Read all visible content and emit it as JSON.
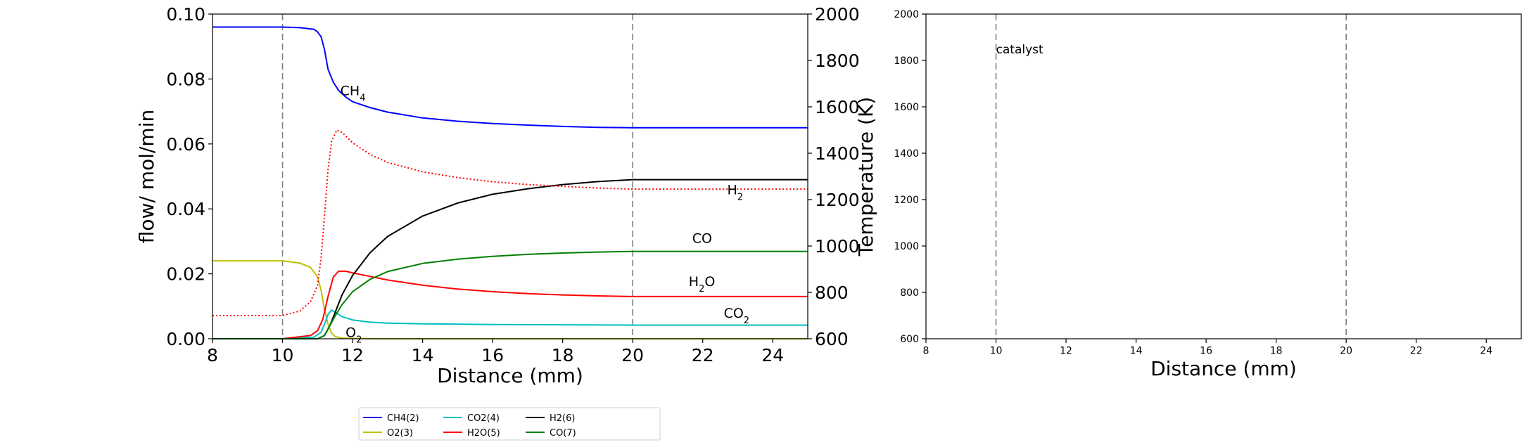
{
  "chart_data": [
    {
      "type": "line",
      "xlabel": "Distance (mm)",
      "ylabel": "flow/ mol/min",
      "y2label": "Temperature (K)",
      "xlim": [
        8,
        25
      ],
      "ylim": [
        0,
        0.1
      ],
      "y2lim": [
        600,
        2000
      ],
      "xticks": [
        "8",
        "10",
        "12",
        "14",
        "16",
        "18",
        "20",
        "22",
        "24"
      ],
      "yticks": [
        "0.00",
        "0.02",
        "0.04",
        "0.06",
        "0.08",
        "0.10"
      ],
      "y2ticks": [
        "600",
        "800",
        "1000",
        "1200",
        "1400",
        "1600",
        "1800",
        "2000"
      ],
      "vlines": [
        10,
        20
      ],
      "series": [
        {
          "name": "CH4(2)",
          "color": "#0000ff",
          "x": [
            8,
            10,
            10.5,
            10.9,
            11.0,
            11.1,
            11.2,
            11.3,
            11.45,
            11.6,
            11.8,
            12,
            12.5,
            13,
            14,
            15,
            16,
            17,
            18,
            19,
            20,
            21,
            22,
            23,
            24,
            25
          ],
          "y": [
            0.096,
            0.096,
            0.0958,
            0.0953,
            0.0945,
            0.093,
            0.089,
            0.083,
            0.079,
            0.0765,
            0.0745,
            0.073,
            0.0712,
            0.0698,
            0.068,
            0.067,
            0.0663,
            0.0658,
            0.0654,
            0.0651,
            0.065,
            0.065,
            0.065,
            0.065,
            0.065,
            0.065
          ]
        },
        {
          "name": "O2(3)",
          "color": "#bfbf00",
          "x": [
            8,
            10,
            10.5,
            10.8,
            11.0,
            11.1,
            11.2,
            11.3,
            11.4,
            11.5,
            11.7,
            12,
            13,
            25
          ],
          "y": [
            0.024,
            0.024,
            0.0233,
            0.022,
            0.019,
            0.015,
            0.009,
            0.0045,
            0.0018,
            0.0007,
            0.0002,
            0.0001,
            0.0,
            0.0
          ]
        },
        {
          "name": "CO2(4)",
          "color": "#00bfbf",
          "x": [
            8,
            10,
            10.9,
            11.1,
            11.2,
            11.3,
            11.4,
            11.5,
            11.7,
            12,
            12.5,
            13,
            14,
            16,
            18,
            20,
            25
          ],
          "y": [
            0.0,
            0.0,
            0.0005,
            0.002,
            0.0045,
            0.0075,
            0.0088,
            0.0082,
            0.0068,
            0.0058,
            0.0051,
            0.0048,
            0.0046,
            0.0044,
            0.0043,
            0.0042,
            0.0042
          ]
        },
        {
          "name": "H2O(5)",
          "color": "#ff0000",
          "x": [
            8,
            10,
            10.8,
            11.0,
            11.15,
            11.3,
            11.45,
            11.6,
            11.8,
            12,
            12.5,
            13,
            14,
            15,
            16,
            17,
            18,
            19,
            20,
            21,
            22,
            23,
            24,
            25
          ],
          "y": [
            0.0,
            0.0,
            0.001,
            0.0025,
            0.006,
            0.013,
            0.019,
            0.0208,
            0.0208,
            0.0203,
            0.0192,
            0.0181,
            0.0165,
            0.0153,
            0.0145,
            0.0139,
            0.0135,
            0.0132,
            0.013,
            0.013,
            0.013,
            0.013,
            0.013,
            0.013
          ]
        },
        {
          "name": "H2(6)",
          "color": "#000000",
          "x": [
            8,
            10,
            11,
            11.2,
            11.35,
            11.5,
            11.7,
            12,
            12.5,
            13,
            14,
            15,
            16,
            17,
            18,
            19,
            20,
            21,
            22,
            23,
            24,
            25
          ],
          "y": [
            0.0,
            0.0,
            0.0,
            0.001,
            0.004,
            0.008,
            0.0135,
            0.0195,
            0.0265,
            0.0315,
            0.0378,
            0.0418,
            0.0445,
            0.0462,
            0.0475,
            0.0484,
            0.049,
            0.049,
            0.049,
            0.049,
            0.049,
            0.049
          ]
        },
        {
          "name": "CO(7)",
          "color": "#008000",
          "x": [
            8,
            10,
            11,
            11.2,
            11.35,
            11.5,
            11.7,
            12,
            12.5,
            13,
            14,
            15,
            16,
            17,
            18,
            19,
            20,
            21,
            22,
            23,
            24,
            25
          ],
          "y": [
            0.0,
            0.0,
            0.0,
            0.001,
            0.004,
            0.007,
            0.0105,
            0.0145,
            0.0183,
            0.0207,
            0.0232,
            0.0245,
            0.0254,
            0.026,
            0.0264,
            0.0267,
            0.0269,
            0.0269,
            0.0269,
            0.0269,
            0.0269,
            0.0269
          ]
        },
        {
          "name": "Temperature",
          "color": "#ff0000",
          "dashed": true,
          "axis": "y2",
          "x": [
            8,
            10,
            10.5,
            10.8,
            11.0,
            11.1,
            11.2,
            11.3,
            11.4,
            11.55,
            11.7,
            12,
            12.5,
            13,
            14,
            15,
            16,
            17,
            18,
            19,
            20,
            21,
            22,
            23,
            24,
            25
          ],
          "y": [
            700,
            700,
            720,
            760,
            830,
            950,
            1130,
            1330,
            1450,
            1500,
            1490,
            1445,
            1395,
            1360,
            1320,
            1295,
            1277,
            1265,
            1257,
            1250,
            1245,
            1245,
            1245,
            1245,
            1245,
            1245
          ]
        }
      ],
      "annotations": [
        {
          "x": 11.65,
          "y": 0.075,
          "color": "#0000ff",
          "base": "CH",
          "sub": "4",
          "tail": ""
        },
        {
          "x": 22.7,
          "y": 0.0445,
          "color": "#000000",
          "base": "H",
          "sub": "2",
          "tail": ""
        },
        {
          "x": 21.7,
          "y": 0.0295,
          "color": "#008000",
          "base": "CO",
          "sub": "",
          "tail": ""
        },
        {
          "x": 21.6,
          "y": 0.0162,
          "color": "#ff0000",
          "base": "H",
          "sub": "2",
          "tail": "O"
        },
        {
          "x": 22.6,
          "y": 0.0065,
          "color": "#00bfbf",
          "base": "CO",
          "sub": "2",
          "tail": ""
        },
        {
          "x": 11.8,
          "y": 0.0005,
          "color": "#bfbf00",
          "base": "O",
          "sub": "2",
          "tail": ""
        }
      ],
      "legend": {
        "placement": "bottom-center",
        "columns": 4,
        "entries": [
          "CH4(2)",
          "O2(3)",
          "CO2(4)",
          "H2O(5)",
          "H2(6)",
          "CO(7)"
        ]
      }
    },
    {
      "type": "line",
      "xlabel": "Distance (mm)",
      "ylabel": "",
      "xlim": [
        8,
        25
      ],
      "ylim": [
        600,
        2000
      ],
      "xticks": [
        "8",
        "10",
        "12",
        "14",
        "16",
        "18",
        "20",
        "22",
        "24"
      ],
      "yticks": [
        "600",
        "800",
        "1000",
        "1200",
        "1400",
        "1600",
        "1800",
        "2000"
      ],
      "vlines": [
        10,
        20
      ],
      "annotations": [
        {
          "x": 10.0,
          "y": 1830,
          "color": "#000000",
          "text": "catalyst"
        }
      ],
      "series": []
    }
  ]
}
